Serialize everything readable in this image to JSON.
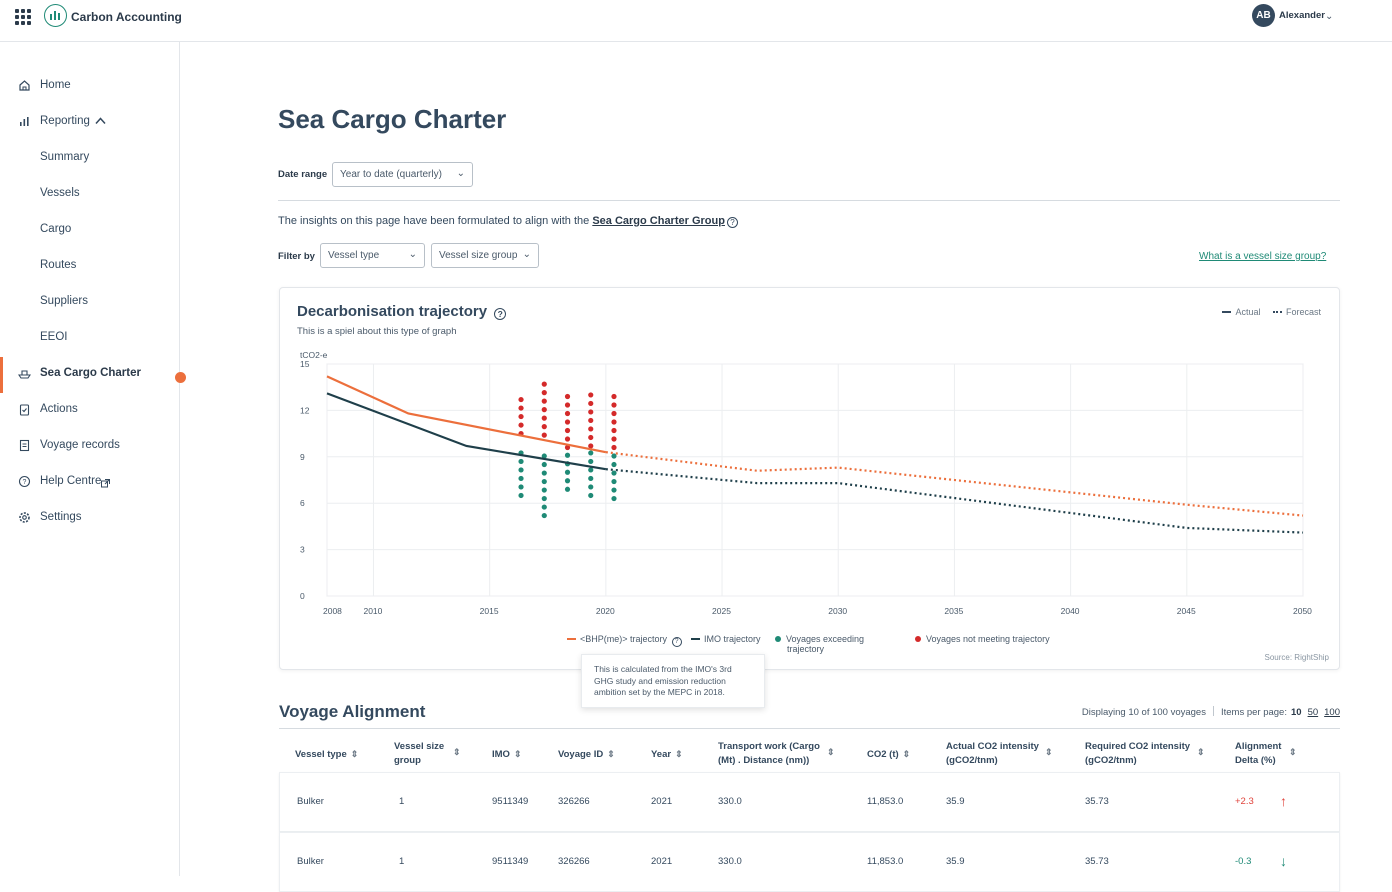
{
  "app": {
    "title": "Carbon Accounting"
  },
  "user": {
    "initials": "AB",
    "name": "Alexander"
  },
  "sidebar": {
    "items": [
      {
        "label": "Home",
        "icon": "home-icon"
      },
      {
        "label": "Reporting",
        "icon": "bar-chart-icon"
      },
      {
        "label": "Summary"
      },
      {
        "label": "Vessels"
      },
      {
        "label": "Cargo"
      },
      {
        "label": "Routes"
      },
      {
        "label": "Suppliers"
      },
      {
        "label": "EEOI"
      },
      {
        "label": "Sea Cargo Charter",
        "icon": "ship-icon",
        "active": true
      },
      {
        "label": "Actions",
        "icon": "clipboard-icon"
      },
      {
        "label": "Voyage records",
        "icon": "document-icon"
      },
      {
        "label": "Help Centre",
        "icon": "help-icon"
      },
      {
        "label": "Settings",
        "icon": "gear-icon"
      }
    ]
  },
  "page": {
    "title": "Sea Cargo Charter",
    "date_range_label": "Date range",
    "date_range_value": "Year to date (quarterly)",
    "insight_text": "The insights on this page have been formulated to align with the ",
    "insight_link": "Sea Cargo Charter Group",
    "filter_label": "Filter by",
    "filter_vessel_type": "Vessel type",
    "filter_vessel_size": "Vessel size group",
    "vessel_size_link": "What is a vessel size group?"
  },
  "chart_card": {
    "title": "Decarbonisation trajectory",
    "subtitle": "This is a spiel about this type of graph",
    "legend_actual": "Actual",
    "legend_forecast": "Forecast",
    "legend_bhp": "<BHP(me)> trajectory",
    "legend_imo": "IMO trajectory",
    "legend_exceeding": "Voyages exceeding",
    "legend_exceeding_2": "trajectory",
    "legend_not_meeting": "Voyages not meeting trajectory",
    "source": "Source: RightShip",
    "tooltip": "This is calculated from the IMO's 3rd GHG study and emission reduction ambition set by the MEPC in 2018.",
    "colors": {
      "bhp": "#ec6f3c",
      "imo": "#1f3f4a",
      "exceeding": "#1f8a76",
      "not_meeting": "#d42a2a"
    }
  },
  "chart_data": {
    "type": "line",
    "ylabel": "tCO2-e",
    "ylim": [
      0,
      15
    ],
    "yticks": [
      0,
      3,
      6,
      9,
      12,
      15
    ],
    "xlim": [
      2008,
      2050
    ],
    "xticks": [
      2008,
      2010,
      2015,
      2020,
      2025,
      2030,
      2035,
      2040,
      2045,
      2050
    ],
    "series": [
      {
        "name": "<BHP(me)> trajectory",
        "actual": [
          [
            2008,
            14.2
          ],
          [
            2011.5,
            11.8
          ],
          [
            2020,
            9.3
          ]
        ],
        "forecast": [
          [
            2020,
            9.3
          ],
          [
            2026.5,
            8.1
          ],
          [
            2030,
            8.3
          ],
          [
            2045,
            5.9
          ],
          [
            2050,
            5.2
          ]
        ]
      },
      {
        "name": "IMO trajectory",
        "actual": [
          [
            2008,
            13.1
          ],
          [
            2014,
            9.7
          ],
          [
            2020,
            8.2
          ]
        ],
        "forecast": [
          [
            2020,
            8.2
          ],
          [
            2026.5,
            7.3
          ],
          [
            2030,
            7.3
          ],
          [
            2045,
            4.4
          ],
          [
            2050,
            4.1
          ]
        ]
      }
    ],
    "voyage_groups": [
      {
        "x": 2016,
        "not_meeting": [
          13.0,
          10.5
        ],
        "exceeding": [
          9.5,
          6.5
        ]
      },
      {
        "x": 2017,
        "not_meeting": [
          13.9,
          10.4
        ],
        "exceeding": [
          9.4,
          5.2
        ]
      },
      {
        "x": 2018,
        "not_meeting": [
          13.4,
          9.6
        ],
        "exceeding": [
          9.4,
          6.9
        ]
      },
      {
        "x": 2019,
        "not_meeting": [
          13.5,
          9.7
        ],
        "exceeding": [
          9.3,
          6.5
        ]
      },
      {
        "x": 2020,
        "not_meeting": [
          13.1,
          9.6
        ],
        "exceeding": [
          9.4,
          6.3
        ]
      }
    ]
  },
  "voyage_alignment": {
    "title": "Voyage Alignment",
    "displaying": "Displaying 10 of 100 voyages",
    "items_per_page_label": "Items per page:",
    "page_sizes": [
      "10",
      "50",
      "100"
    ],
    "columns": [
      [
        "Vessel type",
        ""
      ],
      [
        "Vessel size",
        "group"
      ],
      [
        "IMO",
        ""
      ],
      [
        "Voyage ID",
        ""
      ],
      [
        "Year",
        ""
      ],
      [
        "Transport work  (Cargo",
        "(Mt) . Distance (nm))"
      ],
      [
        "CO2 (t)",
        ""
      ],
      [
        "Actual CO2 intensity",
        "(gCO2/tnm)"
      ],
      [
        "Required CO2 intensity",
        "(gCO2/tnm)"
      ],
      [
        "Alignment",
        "Delta (%)"
      ]
    ],
    "rows": [
      [
        "Bulker",
        "1",
        "9511349",
        "326266",
        "2021",
        "330.0",
        "11,853.0",
        "35.9",
        "35.73",
        "+2.3"
      ],
      [
        "Bulker",
        "1",
        "9511349",
        "326266",
        "2021",
        "330.0",
        "11,853.0",
        "35.9",
        "35.73",
        "-0.3"
      ]
    ]
  }
}
